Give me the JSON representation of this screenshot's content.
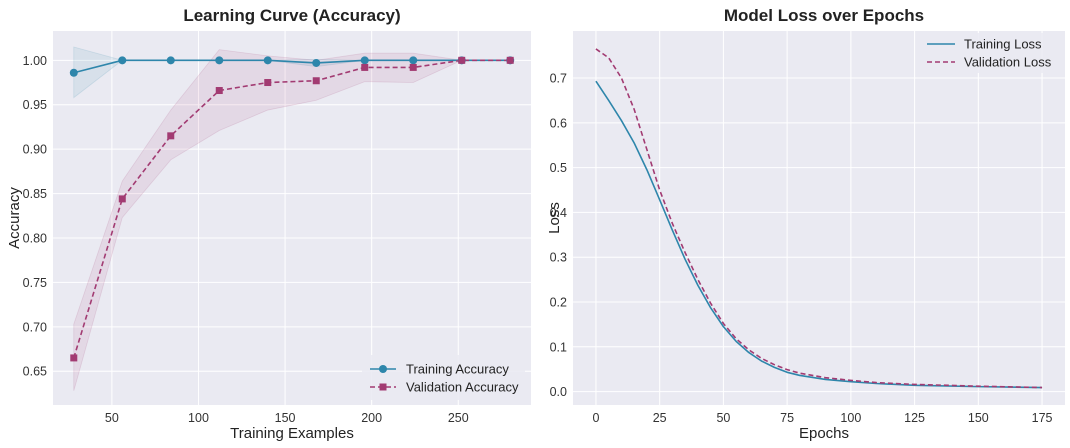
{
  "colors": {
    "training": "#2e86ab",
    "validation": "#a23b72",
    "plot_bg": "#eaeaf2",
    "grid": "#ffffff"
  },
  "chart_data": [
    {
      "type": "line",
      "title": "Learning Curve (Accuracy)",
      "xlabel": "Training Examples",
      "ylabel": "Accuracy",
      "xlim": [
        16,
        292
      ],
      "ylim": [
        0.612,
        1.033
      ],
      "xticks": [
        50,
        100,
        150,
        200,
        250
      ],
      "xtick_labels": [
        "50",
        "100",
        "150",
        "200",
        "250"
      ],
      "yticks": [
        0.65,
        0.7,
        0.75,
        0.8,
        0.85,
        0.9,
        0.95,
        1.0
      ],
      "ytick_labels": [
        "0.65",
        "0.70",
        "0.75",
        "0.80",
        "0.85",
        "0.90",
        "0.95",
        "1.00"
      ],
      "grid": true,
      "legend_position": "bottom-right",
      "x": [
        28,
        56,
        84,
        112,
        140,
        168,
        196,
        224,
        252,
        280
      ],
      "series": [
        {
          "name": "Training Accuracy",
          "color_key": "training",
          "marker": "circle",
          "dash": false,
          "values": [
            0.986,
            1.0,
            1.0,
            1.0,
            1.0,
            0.997,
            1.0,
            1.0,
            1.0,
            1.0
          ],
          "band_low": [
            0.958,
            1.0,
            1.0,
            1.0,
            1.0,
            0.993,
            1.0,
            1.0,
            1.0,
            1.0
          ],
          "band_high": [
            1.015,
            1.0,
            1.0,
            1.0,
            1.0,
            1.001,
            1.0,
            1.0,
            1.0,
            1.0
          ]
        },
        {
          "name": "Validation Accuracy",
          "color_key": "validation",
          "marker": "square",
          "dash": true,
          "values": [
            0.665,
            0.844,
            0.915,
            0.966,
            0.975,
            0.977,
            0.992,
            0.992,
            1.0,
            1.0
          ],
          "band_low": [
            0.628,
            0.823,
            0.888,
            0.921,
            0.944,
            0.955,
            0.976,
            0.975,
            1.0,
            1.0
          ],
          "band_high": [
            0.703,
            0.864,
            0.944,
            1.012,
            1.005,
            1.0,
            1.008,
            1.008,
            1.0,
            1.0
          ]
        }
      ]
    },
    {
      "type": "line",
      "title": "Model Loss over Epochs",
      "xlabel": "Epochs",
      "ylabel": "Loss",
      "xlim": [
        -9,
        184
      ],
      "ylim": [
        -0.03,
        0.805
      ],
      "xticks": [
        0,
        25,
        50,
        75,
        100,
        125,
        150,
        175
      ],
      "xtick_labels": [
        "0",
        "25",
        "50",
        "75",
        "100",
        "125",
        "150",
        "175"
      ],
      "yticks": [
        0.0,
        0.1,
        0.2,
        0.3,
        0.4,
        0.5,
        0.6,
        0.7
      ],
      "ytick_labels": [
        "0.0",
        "0.1",
        "0.2",
        "0.3",
        "0.4",
        "0.5",
        "0.6",
        "0.7"
      ],
      "grid": true,
      "legend_position": "top-right",
      "x": [
        0,
        5,
        10,
        15,
        20,
        25,
        30,
        35,
        40,
        45,
        50,
        55,
        60,
        65,
        70,
        75,
        80,
        90,
        100,
        110,
        125,
        150,
        175
      ],
      "series": [
        {
          "name": "Training Loss",
          "color_key": "training",
          "dash": false,
          "values": [
            0.693,
            0.65,
            0.605,
            0.555,
            0.495,
            0.428,
            0.36,
            0.295,
            0.237,
            0.187,
            0.145,
            0.112,
            0.087,
            0.068,
            0.054,
            0.043,
            0.036,
            0.027,
            0.022,
            0.018,
            0.014,
            0.011,
            0.009
          ]
        },
        {
          "name": "Validation Loss",
          "color_key": "validation",
          "dash": true,
          "values": [
            0.765,
            0.745,
            0.7,
            0.63,
            0.54,
            0.45,
            0.375,
            0.31,
            0.25,
            0.197,
            0.152,
            0.118,
            0.093,
            0.074,
            0.06,
            0.049,
            0.041,
            0.031,
            0.025,
            0.02,
            0.016,
            0.012,
            0.009
          ]
        }
      ]
    }
  ]
}
